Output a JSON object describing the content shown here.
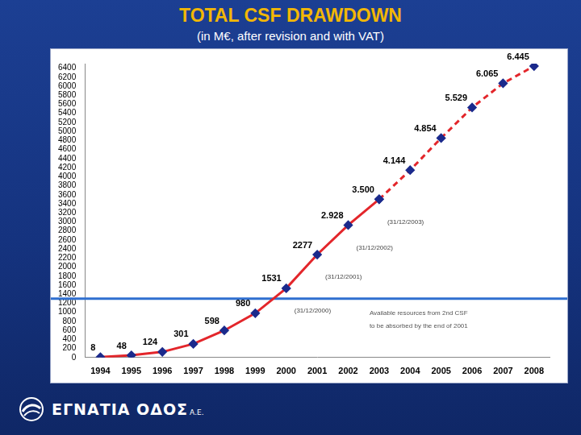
{
  "chart_data": {
    "type": "line",
    "title": "TOTAL CSF DRAWDOWN",
    "subtitle": "(in M€, after revision and with VAT)",
    "categories": [
      "1994",
      "1995",
      "1996",
      "1997",
      "1998",
      "1999",
      "2000",
      "2001",
      "2002",
      "2003",
      "2004",
      "2005",
      "2006",
      "2007",
      "2008"
    ],
    "series": [
      {
        "color": "#e3262b",
        "line_style": "solid",
        "marker": "diamond",
        "values": [
          8,
          48,
          124,
          301,
          598,
          980,
          1531,
          2277,
          2928,
          3500,
          null,
          null,
          null,
          null,
          null
        ],
        "value_labels": [
          "8",
          "48",
          "124",
          "301",
          "598",
          "980",
          "1531",
          "2277",
          "2.928",
          "3.500",
          null,
          null,
          null,
          null,
          null
        ]
      },
      {
        "color": "#e3262b",
        "line_style": "dashed",
        "marker": "diamond",
        "values": [
          null,
          null,
          null,
          null,
          null,
          null,
          null,
          null,
          null,
          3500,
          4144,
          4854,
          5529,
          6065,
          6445
        ],
        "value_labels": [
          null,
          null,
          null,
          null,
          null,
          null,
          null,
          null,
          null,
          null,
          "4.144",
          "4.854",
          "5.529",
          "6.065",
          "6.445"
        ]
      }
    ],
    "ylim": [
      0,
      6500
    ],
    "yticks": [
      0,
      200,
      400,
      600,
      800,
      1000,
      1200,
      1400,
      1600,
      1800,
      2000,
      2200,
      2400,
      2600,
      2800,
      3000,
      3200,
      3400,
      3600,
      3800,
      4000,
      4200,
      4400,
      4600,
      4800,
      5000,
      5200,
      5400,
      5600,
      5800,
      6000,
      6200,
      6400
    ],
    "grid": false,
    "data_labels": true,
    "annotations": [
      {
        "text": "(31/12/2000)",
        "x": "2000"
      },
      {
        "text": "(31/12/2001)",
        "x": "2001"
      },
      {
        "text": "(31/12/2002)",
        "x": "2002"
      },
      {
        "text": "(31/12/2003)",
        "x": "2003"
      }
    ],
    "reference_line": {
      "value": 1300,
      "color": "#2f6fd0",
      "label": [
        "Available resources from 2nd CSF",
        "to be absorbed by the end of 2001"
      ]
    },
    "footer": {
      "text": "ΕΓΝΑΤΙΑ ΟΔΟΣ",
      "suffix": "Α.Ε."
    }
  }
}
